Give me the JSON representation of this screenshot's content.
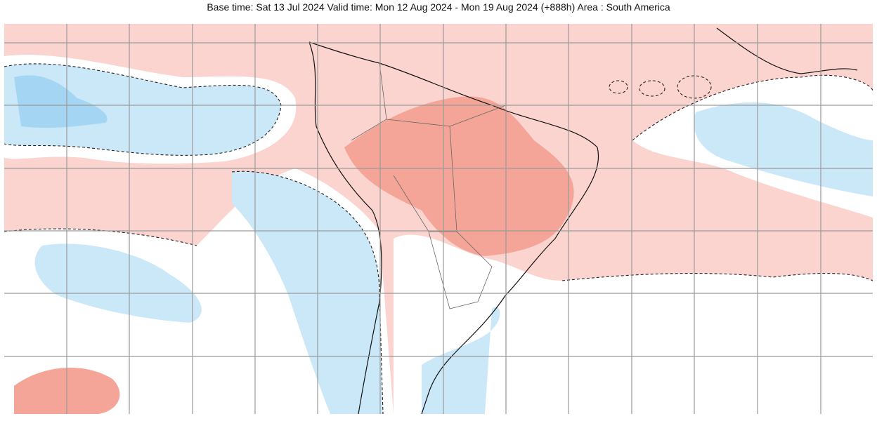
{
  "header": {
    "title": "Base time: Sat 13 Jul 2024 Valid time: Mon 12 Aug 2024 - Mon 19 Aug 2024 (+888h) Area : South America"
  }
}
